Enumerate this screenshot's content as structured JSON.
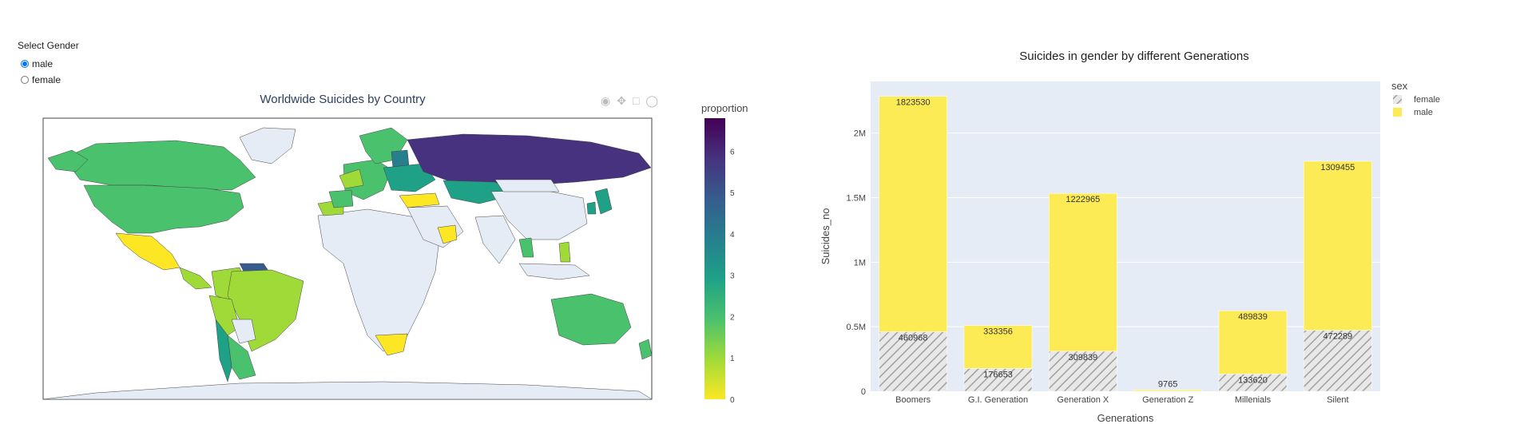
{
  "controls": {
    "title": "Select Gender",
    "options": [
      {
        "label": "male",
        "selected": true
      },
      {
        "label": "female",
        "selected": false
      }
    ]
  },
  "map": {
    "title": "Worldwide Suicides by Country",
    "colorbar_title": "proportion",
    "colorbar_ticks": [
      "0",
      "1",
      "2",
      "3",
      "4",
      "5",
      "6"
    ],
    "colorscale": [
      "#fde725",
      "#a0da39",
      "#4ac16d",
      "#1fa187",
      "#277f8e",
      "#365c8d",
      "#46327e",
      "#440154"
    ],
    "land_color": "#e5ecf6",
    "modebar": [
      "camera-icon",
      "pan-icon",
      "box-select-icon",
      "lasso-icon",
      "zoom-in-icon",
      "zoom-out-icon",
      "reset-icon",
      "plotly-logo-icon"
    ]
  },
  "chart_data": {
    "type": "bar",
    "title": "Suicides in gender by different Generations",
    "xlabel": "Generations",
    "ylabel": "Suicides_no",
    "categories": [
      "Boomers",
      "G.I. Generation",
      "Generation X",
      "Generation Z",
      "Millenials",
      "Silent"
    ],
    "series": [
      {
        "name": "female",
        "values": [
          460968,
          176653,
          309839,
          0,
          133620,
          472289
        ],
        "color": "#c8c8c8",
        "pattern": "diagonal-hatch",
        "labels": [
          "460968",
          "176653",
          "309839",
          "",
          "133620",
          "472289"
        ]
      },
      {
        "name": "male",
        "values": [
          1823530,
          333356,
          1222965,
          9765,
          489839,
          1309455
        ],
        "color": "#fdeb55",
        "labels": [
          "1823530",
          "333356",
          "1222965",
          "9765",
          "489839",
          "1309455"
        ]
      }
    ],
    "stacked": true,
    "ylim": [
      0,
      2400000
    ],
    "yticks": [
      {
        "v": 0,
        "label": "0"
      },
      {
        "v": 500000,
        "label": "0.5M"
      },
      {
        "v": 1000000,
        "label": "1M"
      },
      {
        "v": 1500000,
        "label": "1.5M"
      },
      {
        "v": 2000000,
        "label": "2M"
      }
    ],
    "legend": {
      "title": "sex",
      "placement": "top-right"
    },
    "grid": true,
    "plot_bg": "#e5ecf6"
  }
}
